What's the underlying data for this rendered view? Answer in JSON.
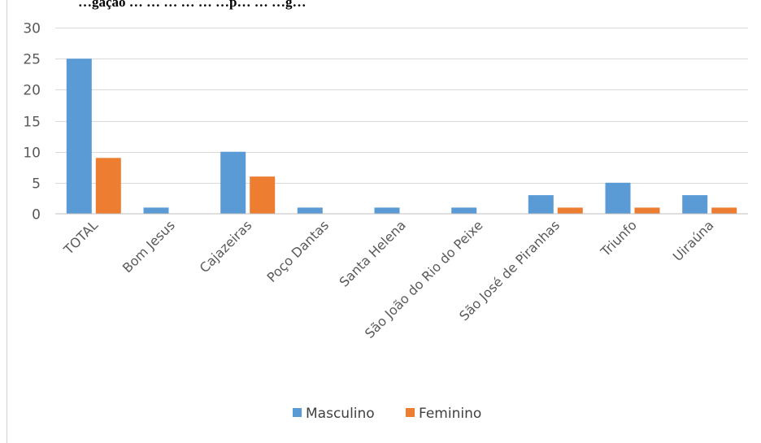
{
  "chart_data": {
    "type": "bar",
    "title": "…gação … … … … … …p… … …g…",
    "categories": [
      "TOTAL",
      "Bom Jesus",
      "Cajazeiras",
      "Poço Dantas",
      "Santa Helena",
      "São João do Rio do Peixe",
      "São José de Piranhas",
      "Triunfo",
      "Uiraúna"
    ],
    "series": [
      {
        "name": "Masculino",
        "values": [
          25,
          1,
          10,
          1,
          1,
          1,
          3,
          5,
          3
        ],
        "color": "#5B9BD5"
      },
      {
        "name": "Feminino",
        "values": [
          9,
          0,
          6,
          0,
          0,
          0,
          1,
          1,
          1
        ],
        "color": "#ED7D31"
      }
    ],
    "y_ticks": [
      "0",
      "5",
      "10",
      "15",
      "20",
      "25",
      "30"
    ],
    "ylim": [
      0,
      30
    ],
    "grid": true,
    "legend_position": "bottom"
  }
}
